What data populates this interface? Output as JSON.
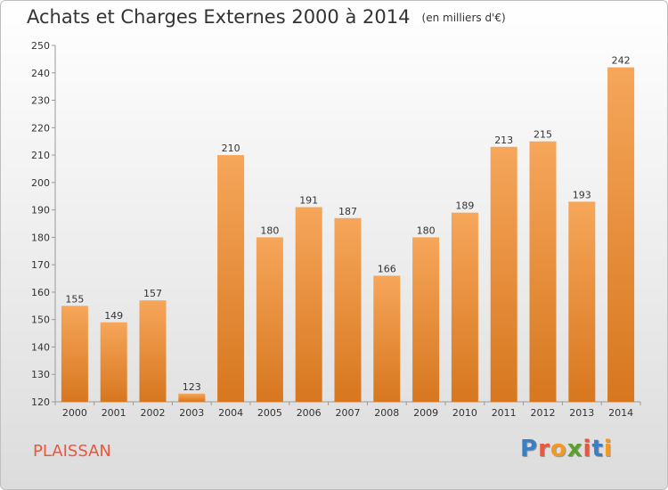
{
  "title": {
    "main": "Achats et Charges Externes 2000 à 2014",
    "sub": "(en milliers d'€)"
  },
  "commune": "PLAISSAN",
  "logo": {
    "text": "Proxiti",
    "letter_colors": [
      "#3a7fc1",
      "#e8573e",
      "#f29a1f",
      "#5aa02c",
      "#e8573e",
      "#3a7fc1",
      "#f29a1f"
    ]
  },
  "colors": {
    "bar_top": "#f6a65a",
    "bar_bottom": "#d7771f",
    "axis": "#999999",
    "commune_text": "#e8573e"
  },
  "chart_data": {
    "type": "bar",
    "categories": [
      "2000",
      "2001",
      "2002",
      "2003",
      "2004",
      "2005",
      "2006",
      "2007",
      "2008",
      "2009",
      "2010",
      "2011",
      "2012",
      "2013",
      "2014"
    ],
    "values": [
      155,
      149,
      157,
      123,
      210,
      180,
      191,
      187,
      166,
      180,
      189,
      213,
      215,
      193,
      242
    ],
    "ylim": [
      120,
      250
    ],
    "yticks": [
      120,
      130,
      140,
      150,
      160,
      170,
      180,
      190,
      200,
      210,
      220,
      230,
      240,
      250
    ],
    "grid": false,
    "data_labels": true
  }
}
